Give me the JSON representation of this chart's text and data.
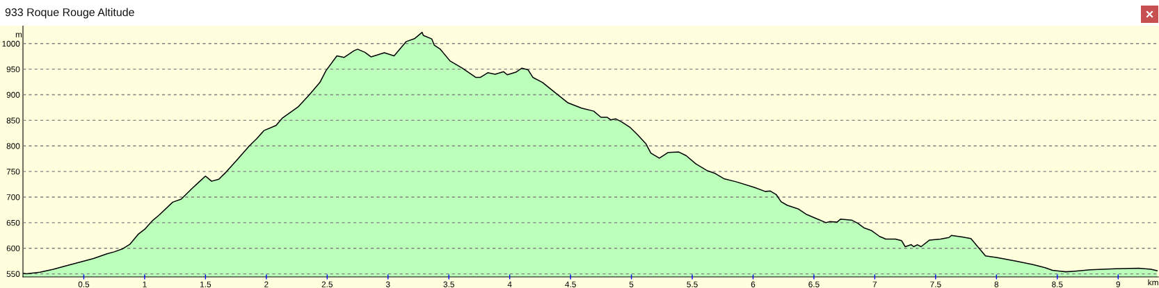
{
  "chart_data": {
    "type": "area",
    "title": "933 Roque Rouge Altitude",
    "xlabel": "km",
    "ylabel": "m",
    "x": [
      0,
      0.03,
      0.14,
      0.25,
      0.36,
      0.5,
      0.58,
      0.69,
      0.75,
      0.82,
      0.88,
      0.95,
      1.0,
      1.06,
      1.12,
      1.23,
      1.3,
      1.39,
      1.44,
      1.5,
      1.55,
      1.61,
      1.67,
      1.76,
      1.86,
      1.92,
      1.98,
      2.08,
      2.13,
      2.26,
      2.35,
      2.44,
      2.49,
      2.58,
      2.64,
      2.72,
      2.75,
      2.81,
      2.86,
      2.97,
      3.05,
      3.15,
      3.22,
      3.28,
      3.29,
      3.36,
      3.38,
      3.43,
      3.51,
      3.61,
      3.72,
      3.76,
      3.82,
      3.88,
      3.95,
      3.98,
      4.05,
      4.1,
      4.15,
      4.19,
      4.27,
      4.38,
      4.48,
      4.59,
      4.69,
      4.75,
      4.8,
      4.83,
      4.87,
      4.92,
      4.99,
      5.05,
      5.12,
      5.16,
      5.23,
      5.3,
      5.39,
      5.45,
      5.53,
      5.62,
      5.69,
      5.76,
      5.86,
      6.01,
      6.1,
      6.14,
      6.19,
      6.23,
      6.28,
      6.37,
      6.44,
      6.51,
      6.6,
      6.63,
      6.69,
      6.72,
      6.81,
      6.86,
      6.91,
      6.97,
      7.04,
      7.09,
      7.17,
      7.22,
      7.25,
      7.3,
      7.32,
      7.35,
      7.38,
      7.45,
      7.54,
      7.61,
      7.63,
      7.72,
      7.79,
      7.85,
      7.91,
      8.0,
      8.16,
      8.3,
      8.4,
      8.46,
      8.57,
      8.63,
      8.77,
      8.98,
      9.17,
      9.27,
      9.32
    ],
    "series": [
      {
        "color": "#bbffbb",
        "values": [
          551,
          550,
          553,
          559,
          566,
          575,
          580,
          589,
          593,
          599,
          608,
          628,
          637,
          653,
          665,
          690,
          696,
          717,
          728,
          741,
          731,
          735,
          749,
          773,
          800,
          814,
          830,
          840,
          854,
          876,
          899,
          924,
          947,
          976,
          973,
          986,
          989,
          983,
          974,
          982,
          976,
          1004,
          1010,
          1022,
          1016,
          1009,
          997,
          989,
          966,
          952,
          934,
          934,
          943,
          940,
          945,
          939,
          944,
          952,
          949,
          934,
          924,
          903,
          884,
          874,
          868,
          856,
          856,
          851,
          853,
          847,
          836,
          822,
          804,
          786,
          776,
          787,
          788,
          781,
          765,
          752,
          746,
          736,
          730,
          719,
          711,
          712,
          705,
          691,
          684,
          677,
          666,
          659,
          650,
          652,
          651,
          657,
          655,
          649,
          640,
          635,
          623,
          618,
          618,
          615,
          603,
          607,
          603,
          607,
          603,
          616,
          618,
          621,
          625,
          622,
          619,
          602,
          585,
          582,
          575,
          568,
          562,
          557,
          554,
          555,
          558,
          560,
          561,
          559,
          556
        ]
      }
    ],
    "xlim": [
      0,
      9.33
    ],
    "ylim": [
      544,
      1035
    ],
    "xticks": [
      0.5,
      1,
      1.5,
      2,
      2.5,
      3,
      3.5,
      4,
      4.5,
      5,
      5.5,
      6,
      6.5,
      7,
      7.5,
      8,
      8.5,
      9
    ],
    "yticks": [
      550,
      600,
      650,
      700,
      750,
      800,
      850,
      900,
      950,
      1000
    ],
    "grid": "y",
    "line_style": "solid"
  }
}
